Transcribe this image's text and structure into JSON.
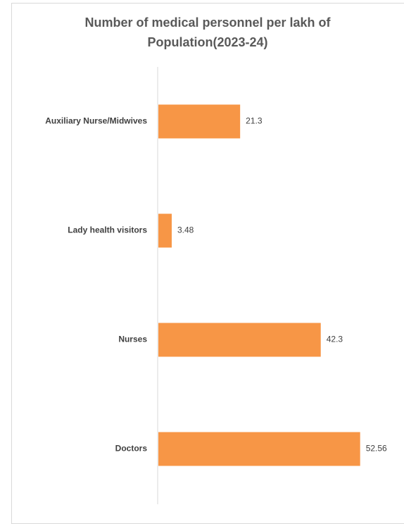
{
  "chart_data": {
    "type": "bar",
    "orientation": "horizontal",
    "title_lines": [
      "Number of medical personnel per lakh of",
      "Population(2023-24)"
    ],
    "categories": [
      "Auxiliary Nurse/Midwives",
      "Lady health visitors",
      "Nurses",
      "Doctors"
    ],
    "values": [
      21.3,
      3.48,
      42.3,
      52.56
    ],
    "value_labels": [
      "21.3",
      "3.48",
      "42.3",
      "52.56"
    ],
    "xlim": [
      0,
      55
    ],
    "grid": false,
    "legend": "none",
    "bar_color": "#F79646",
    "axis_color": "#d9d9d9"
  }
}
